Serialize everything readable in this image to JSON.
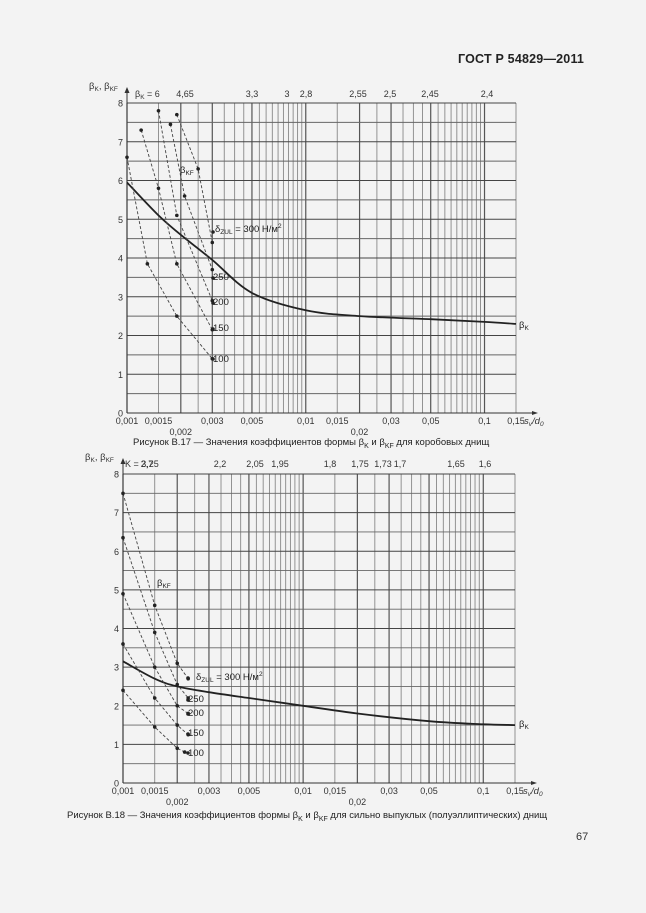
{
  "header": {
    "doc_id": "ГОСТ Р 54829—2011"
  },
  "page_number": "67",
  "chart_data": [
    {
      "type": "line",
      "title": "Рисунок В.17 — Значения коэффициентов формы βK и βKF для коробовых днищ",
      "caption": "Рисунок В.17 — Значения коэффициентов формы β",
      "caption_tail": " для коробовых днищ",
      "xlabel": "sv/d0",
      "ylabel": "βK, βKF",
      "xscale": "log",
      "xlim": [
        0.001,
        0.15
      ],
      "ylim": [
        0,
        8
      ],
      "grid": true,
      "x_ticks": [
        "0,001",
        "0,0015",
        "0,002",
        "0,003",
        "0,005",
        "0,01",
        "0,015",
        "0,02",
        "0,03",
        "0,05",
        "0,1",
        "0,15"
      ],
      "y_ticks": [
        "0",
        "1",
        "2",
        "3",
        "4",
        "5",
        "6",
        "7",
        "8"
      ],
      "top_axis_label": "βK = 6",
      "top_ticks": [
        "4,65",
        "3,3",
        "3",
        "2,8",
        "2,55",
        "2,5",
        "2,45",
        "2,4"
      ],
      "annotations": [
        "βKF",
        "δZUL = 300 Н/м²",
        "250",
        "200",
        "150",
        "100",
        "βK"
      ],
      "series": [
        {
          "name": "βK",
          "style": "solid",
          "x": [
            0.001,
            0.0015,
            0.002,
            0.003,
            0.005,
            0.01,
            0.02,
            0.05,
            0.1,
            0.15
          ],
          "y": [
            5.95,
            5.1,
            4.6,
            3.95,
            3.1,
            2.65,
            2.5,
            2.42,
            2.35,
            2.3
          ]
        },
        {
          "name": "βKF δZUL=300",
          "style": "dashed",
          "x": [
            0.0019,
            0.0025,
            0.003
          ],
          "y": [
            7.7,
            6.3,
            4.4
          ]
        },
        {
          "name": "βKF δZUL=250",
          "style": "dashed",
          "x": [
            0.00175,
            0.0021,
            0.003
          ],
          "y": [
            7.45,
            5.6,
            3.7
          ]
        },
        {
          "name": "βKF δZUL=200",
          "style": "dashed",
          "x": [
            0.0015,
            0.0019,
            0.003
          ],
          "y": [
            7.8,
            5.1,
            2.9
          ]
        },
        {
          "name": "βKF δZUL=150",
          "style": "dashed",
          "x": [
            0.0012,
            0.0015,
            0.0019,
            0.003
          ],
          "y": [
            7.3,
            5.8,
            3.85,
            2.15
          ]
        },
        {
          "name": "βKF δZUL=100",
          "style": "dashed",
          "x": [
            0.001,
            0.0013,
            0.0019,
            0.003
          ],
          "y": [
            6.6,
            3.85,
            2.5,
            1.4
          ]
        }
      ]
    },
    {
      "type": "line",
      "title": "Рисунок В.18 — Значения коэффициентов формы βK и βKF для сильно выпуклых (полуэллиптических) днищ",
      "caption": "Рисунок В.18 — Значения коэффициентов формы β",
      "caption_tail": " для сильно выпуклых (полуэллиптических) днищ",
      "xlabel": "sv/d0",
      "ylabel": "βK, βKF",
      "xscale": "log",
      "xlim": [
        0.001,
        0.15
      ],
      "ylim": [
        0,
        8
      ],
      "grid": true,
      "x_ticks": [
        "0,001",
        "0,0015",
        "0,002",
        "0,003",
        "0,005",
        "0,01",
        "0,015",
        "0,02",
        "0,03",
        "0,05",
        "0,1",
        "0,15"
      ],
      "y_ticks": [
        "0",
        "1",
        "2",
        "3",
        "4",
        "5",
        "6",
        "7",
        "8"
      ],
      "top_axis_label": "K = 3,25",
      "top_ticks": [
        "2,7",
        "2,2",
        "2,05",
        "1,95",
        "1,8",
        "1,75",
        "1,73",
        "1,7",
        "1,65",
        "1,6"
      ],
      "annotations": [
        "βKF",
        "δZUL = 300 Н/м²",
        "250",
        "200",
        "150",
        "100",
        "βK"
      ],
      "series": [
        {
          "name": "βK",
          "style": "solid",
          "x": [
            0.001,
            0.0015,
            0.002,
            0.003,
            0.005,
            0.01,
            0.02,
            0.05,
            0.1,
            0.15
          ],
          "y": [
            3.15,
            2.7,
            2.5,
            2.35,
            2.2,
            2.0,
            1.8,
            1.6,
            1.52,
            1.5
          ]
        },
        {
          "name": "βKF δZUL=300",
          "style": "dashed",
          "x": [
            0.001,
            0.0015,
            0.002,
            0.0023
          ],
          "y": [
            7.5,
            4.6,
            3.1,
            2.7
          ]
        },
        {
          "name": "βKF δZUL=250",
          "style": "dashed",
          "x": [
            0.001,
            0.0015,
            0.002,
            0.0023
          ],
          "y": [
            6.35,
            3.9,
            2.55,
            2.2
          ]
        },
        {
          "name": "βKF δZUL=200",
          "style": "dashed",
          "x": [
            0.001,
            0.0015,
            0.002,
            0.0023
          ],
          "y": [
            4.9,
            3.0,
            2.0,
            1.8
          ]
        },
        {
          "name": "βKF δZUL=150",
          "style": "dashed",
          "x": [
            0.001,
            0.0015,
            0.002,
            0.0023
          ],
          "y": [
            3.6,
            2.2,
            1.5,
            1.25
          ]
        },
        {
          "name": "βKF δZUL=100",
          "style": "dashed",
          "x": [
            0.001,
            0.0015,
            0.002,
            0.0022
          ],
          "y": [
            2.4,
            1.45,
            0.9,
            0.8
          ]
        }
      ]
    }
  ]
}
